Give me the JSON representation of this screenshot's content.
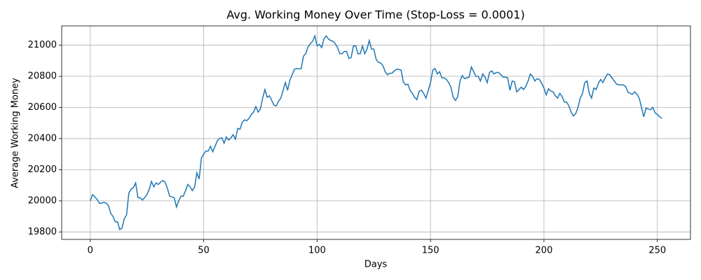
{
  "chart_data": {
    "type": "line",
    "title": "Avg. Working Money Over Time (Stop-Loss = 0.0001)",
    "x_label": "Days",
    "y_label": "Average Working Money",
    "x": [
      0,
      1,
      2,
      3,
      4,
      5,
      6,
      7,
      8,
      9,
      10,
      11,
      12,
      13,
      14,
      15,
      16,
      17,
      18,
      19,
      20,
      21,
      22,
      23,
      24,
      25,
      26,
      27,
      28,
      29,
      30,
      31,
      32,
      33,
      34,
      35,
      36,
      37,
      38,
      39,
      40,
      41,
      42,
      43,
      44,
      45,
      46,
      47,
      48,
      49,
      50,
      51,
      52,
      53,
      54,
      55,
      56,
      57,
      58,
      59,
      60,
      61,
      62,
      63,
      64,
      65,
      66,
      67,
      68,
      69,
      70,
      71,
      72,
      73,
      74,
      75,
      76,
      77,
      78,
      79,
      80,
      81,
      82,
      83,
      84,
      85,
      86,
      87,
      88,
      89,
      90,
      91,
      92,
      93,
      94,
      95,
      96,
      97,
      98,
      99,
      100,
      101,
      102,
      103,
      104,
      105,
      106,
      107,
      108,
      109,
      110,
      111,
      112,
      113,
      114,
      115,
      116,
      117,
      118,
      119,
      120,
      121,
      122,
      123,
      124,
      125,
      126,
      127,
      128,
      129,
      130,
      131,
      132,
      133,
      134,
      135,
      136,
      137,
      138,
      139,
      140,
      141,
      142,
      143,
      144,
      145,
      146,
      147,
      148,
      149,
      150,
      151,
      152,
      153,
      154,
      155,
      156,
      157,
      158,
      159,
      160,
      161,
      162,
      163,
      164,
      165,
      166,
      167,
      168,
      169,
      170,
      171,
      172,
      173,
      174,
      175,
      176,
      177,
      178,
      179,
      180,
      181,
      182,
      183,
      184,
      185,
      186,
      187,
      188,
      189,
      190,
      191,
      192,
      193,
      194,
      195,
      196,
      197,
      198,
      199,
      200,
      201,
      202,
      203,
      204,
      205,
      206,
      207,
      208,
      209,
      210,
      211,
      212,
      213,
      214,
      215,
      216,
      217,
      218,
      219,
      220,
      221,
      222,
      223,
      224,
      225,
      226,
      227,
      228,
      229,
      230,
      231,
      232,
      233,
      234,
      235,
      236,
      237,
      238,
      239,
      240,
      241,
      242,
      243,
      244,
      245,
      246,
      247,
      248,
      249,
      250,
      251,
      252
    ],
    "series": [
      {
        "color": "#1f77b4",
        "values": [
          20000,
          20040,
          20025,
          20010,
          19985,
          19985,
          19990,
          19985,
          19970,
          19920,
          19900,
          19865,
          19865,
          19815,
          19825,
          19885,
          19910,
          20050,
          20075,
          20085,
          20115,
          20020,
          20020,
          20005,
          20020,
          20040,
          20075,
          20125,
          20090,
          20115,
          20105,
          20120,
          20130,
          20120,
          20080,
          20030,
          20025,
          20020,
          19960,
          20000,
          20030,
          20030,
          20065,
          20105,
          20090,
          20065,
          20090,
          20180,
          20140,
          20275,
          20300,
          20320,
          20320,
          20350,
          20315,
          20350,
          20385,
          20400,
          20405,
          20370,
          20410,
          20390,
          20405,
          20425,
          20395,
          20465,
          20460,
          20505,
          20520,
          20515,
          20530,
          20555,
          20570,
          20605,
          20570,
          20590,
          20660,
          20715,
          20665,
          20675,
          20645,
          20615,
          20610,
          20640,
          20660,
          20710,
          20760,
          20710,
          20775,
          20810,
          20845,
          20850,
          20848,
          20850,
          20930,
          20945,
          20990,
          21010,
          21025,
          21060,
          20995,
          21005,
          20985,
          21040,
          21060,
          21040,
          21030,
          21025,
          21010,
          20985,
          20945,
          20945,
          20960,
          20960,
          20915,
          20920,
          20995,
          20995,
          20945,
          20945,
          20995,
          20945,
          20975,
          21030,
          20975,
          20975,
          20910,
          20890,
          20885,
          20870,
          20830,
          20810,
          20820,
          20820,
          20835,
          20845,
          20845,
          20840,
          20765,
          20745,
          20750,
          20710,
          20690,
          20665,
          20650,
          20705,
          20710,
          20690,
          20660,
          20710,
          20760,
          20840,
          20850,
          20815,
          20830,
          20790,
          20790,
          20780,
          20760,
          20730,
          20665,
          20645,
          20670,
          20770,
          20805,
          20785,
          20790,
          20795,
          20860,
          20830,
          20800,
          20800,
          20770,
          20815,
          20795,
          20760,
          20825,
          20835,
          20815,
          20825,
          20825,
          20810,
          20795,
          20795,
          20790,
          20710,
          20770,
          20765,
          20700,
          20715,
          20730,
          20715,
          20735,
          20770,
          20815,
          20800,
          20770,
          20785,
          20780,
          20755,
          20725,
          20680,
          20720,
          20705,
          20700,
          20675,
          20660,
          20690,
          20670,
          20635,
          20635,
          20610,
          20570,
          20545,
          20560,
          20600,
          20660,
          20690,
          20760,
          20770,
          20690,
          20660,
          20725,
          20715,
          20755,
          20780,
          20760,
          20790,
          20815,
          20810,
          20790,
          20770,
          20750,
          20745,
          20745,
          20745,
          20735,
          20700,
          20690,
          20685,
          20700,
          20685,
          20660,
          20600,
          20540,
          20595,
          20590,
          20585,
          20600,
          20565,
          20555,
          20540,
          20530
        ]
      }
    ],
    "xlim": [
      -12.6,
      264.6
    ],
    "ylim": [
      19752,
      21124
    ],
    "xticks": [
      0,
      50,
      100,
      150,
      200,
      250
    ],
    "yticks": [
      19800,
      20000,
      20200,
      20400,
      20600,
      20800,
      21000
    ],
    "grid": true
  }
}
